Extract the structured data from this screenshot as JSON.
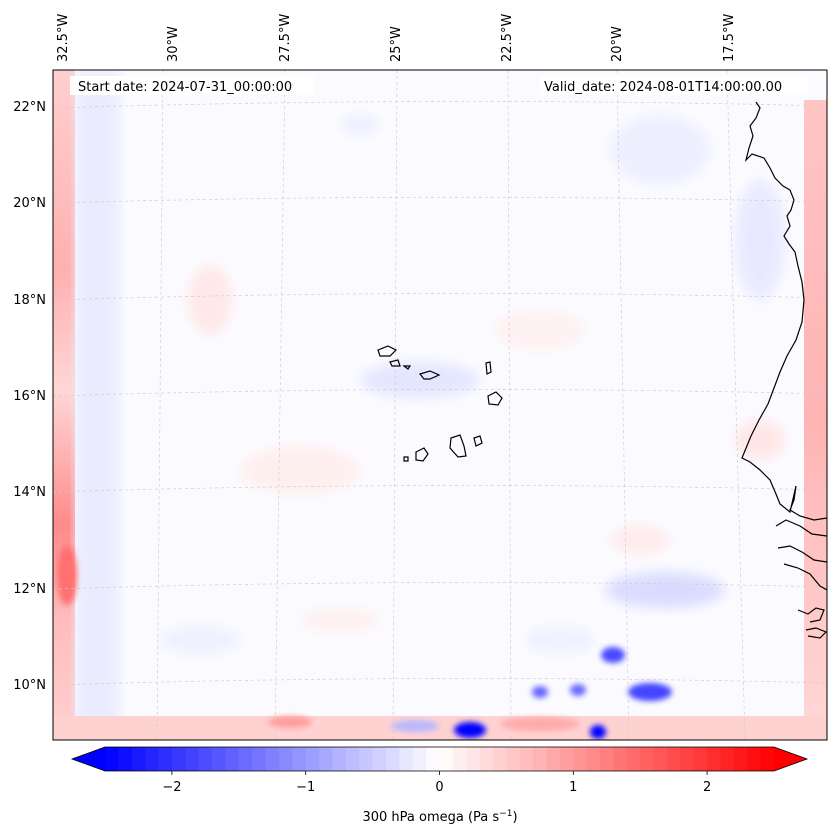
{
  "map": {
    "start_date_text": "Start date: 2024-07-31_00:00:00",
    "valid_date_text": "Valid_date: 2024-08-01T14:00:00.00",
    "lon_labels": [
      "32.5°W",
      "30°W",
      "27.5°W",
      "25°W",
      "22.5°W",
      "20°W",
      "17.5°W"
    ],
    "lat_labels": [
      "22°N",
      "20°N",
      "18°N",
      "16°N",
      "14°N",
      "12°N",
      "10°N"
    ],
    "lon_values": [
      -32.5,
      -30,
      -27.5,
      -25,
      -22.5,
      -20,
      -17.5
    ],
    "lat_values": [
      22,
      20,
      18,
      16,
      14,
      12,
      10
    ],
    "extent": {
      "lon_min": -32.5,
      "lon_max": -15.3,
      "lat_min": 8.9,
      "lat_max": 22.8
    },
    "variable": "300 hPa omega"
  },
  "colorbar": {
    "label": "300 hPa omega (Pa s",
    "label_exp": "−1",
    "label_close": ")",
    "ticks": [
      {
        "value": -2,
        "text": "−2"
      },
      {
        "value": -1,
        "text": "−1"
      },
      {
        "value": 0,
        "text": "0"
      },
      {
        "value": 1,
        "text": "1"
      },
      {
        "value": 2,
        "text": "2"
      }
    ],
    "vmin": -2.5,
    "vmax": 2.5,
    "cmap": "bwr",
    "color_low": "#0000ff",
    "color_mid": "#ffffff",
    "color_high": "#ff0000"
  }
}
